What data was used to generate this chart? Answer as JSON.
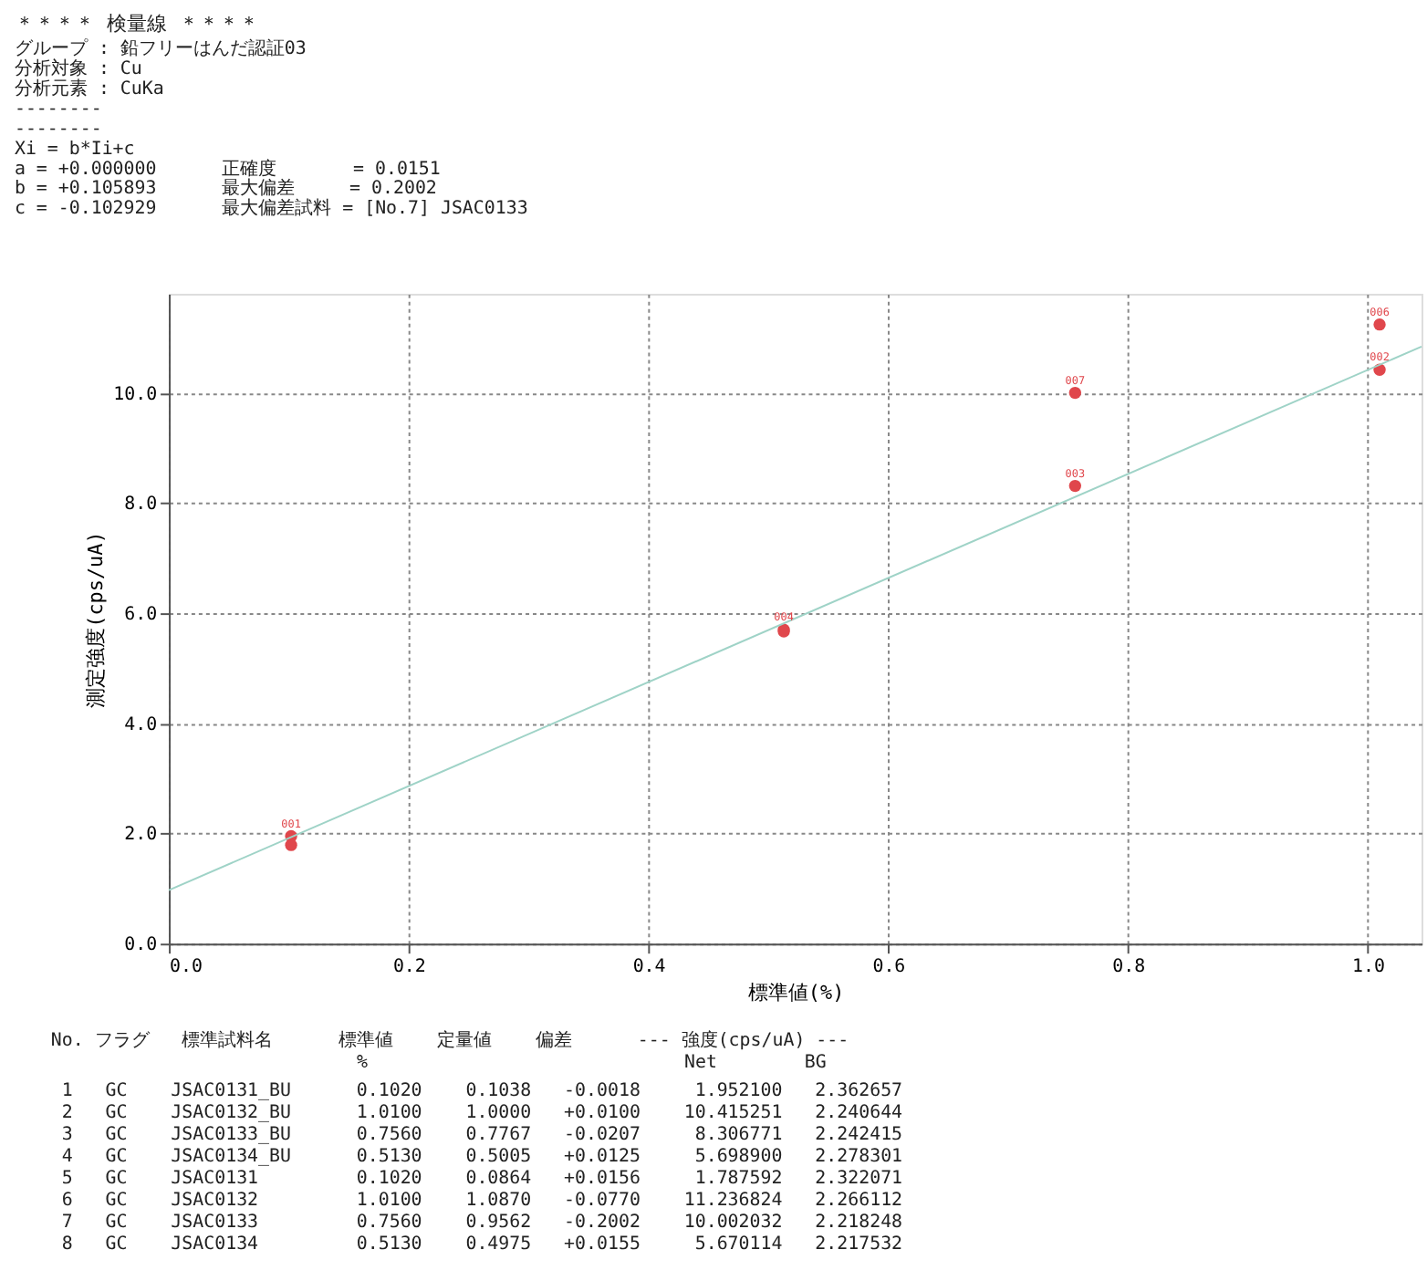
{
  "chart_data": {
    "type": "scatter",
    "title": "＊＊＊＊ 検量線 ＊＊＊＊",
    "subtitle": "グループ : 鉛フリーはんだ認証03\n分析対象 : Cu\n分析元素 : CuKa\n \n              --------\n              --------\n              Xi = b*Ii+c\n \na = +0.000000      正確度       = 0.0151\nb = +0.105893      最大偏差     = 0.2002\nc = -0.102929      最大偏差試料 = [No.7] JSAC0133",
    "xlabel": "標準値(%)",
    "ylabel": "測定強度(cps/uA)",
    "series": [
      {
        "color": "#e0474c",
        "x": [
          0.102,
          1.01,
          0.756,
          0.513,
          0.102,
          1.01,
          0.756,
          0.513
        ],
        "values": [
          1.95,
          10.42,
          8.31,
          5.7,
          1.79,
          11.24,
          10.0,
          5.67
        ]
      },
      {
        "type": "line",
        "marker": "none",
        "color": "#9fd3c7",
        "x": [
          0,
          1.045
        ],
        "values": [
          0.97,
          10.84
        ]
      }
    ],
    "xlim": [
      0,
      1.045
    ],
    "ylim": [
      0,
      11.8
    ],
    "xticks": [
      {
        "value": 0,
        "label": "0.0"
      },
      0.2,
      0.4,
      0.6,
      0.8,
      {
        "value": 1,
        "label": "1.0"
      }
    ],
    "yticks": [
      {
        "value": 0,
        "label": "0.0"
      },
      {
        "value": 2,
        "label": "2.0"
      },
      {
        "value": 4,
        "label": "4.0"
      },
      {
        "value": 6,
        "label": "6.0"
      },
      {
        "value": 8,
        "label": "8.0"
      },
      {
        "value": 10,
        "label": "10.0"
      }
    ],
    "grid": true,
    "marker": "circle",
    "annotations": [
      {
        "text": "001",
        "x": 0.102,
        "y": 1.95
      },
      {
        "text": "002",
        "x": 1.01,
        "y": 10.42
      },
      {
        "text": "003",
        "x": 0.756,
        "y": 8.31
      },
      {
        "text": "004",
        "x": 0.513,
        "y": 5.7
      },
      {
        "text": "006",
        "x": 1.01,
        "y": 11.24
      },
      {
        "text": "007",
        "x": 0.756,
        "y": 10.0
      },
      "No. フラグ   標準試料名      標準値    定量値    偏差      --- 強度(cps/uA) ---",
      "                            %                             Net        BG",
      " 1   GC    JSAC0131_BU      0.1020    0.1038   -0.0018     1.952100   2.362657",
      " 2   GC    JSAC0132_BU      1.0100    1.0000   +0.0100    10.415251   2.240644",
      " 3   GC    JSAC0133_BU      0.7560    0.7767   -0.0207     8.306771   2.242415",
      " 4   GC    JSAC0134_BU      0.5130    0.5005   +0.0125     5.698900   2.278301",
      " 5   GC    JSAC0131         0.1020    0.0864   +0.0156     1.787592   2.322071",
      " 6   GC    JSAC0132         1.0100    1.0870   -0.0770    11.236824   2.266112",
      " 7   GC    JSAC0133         0.7560    0.9562   -0.2002    10.002032   2.218248",
      " 8   GC    JSAC0134         0.5130    0.4975   +0.0155     5.670114   2.217532"
    ]
  }
}
